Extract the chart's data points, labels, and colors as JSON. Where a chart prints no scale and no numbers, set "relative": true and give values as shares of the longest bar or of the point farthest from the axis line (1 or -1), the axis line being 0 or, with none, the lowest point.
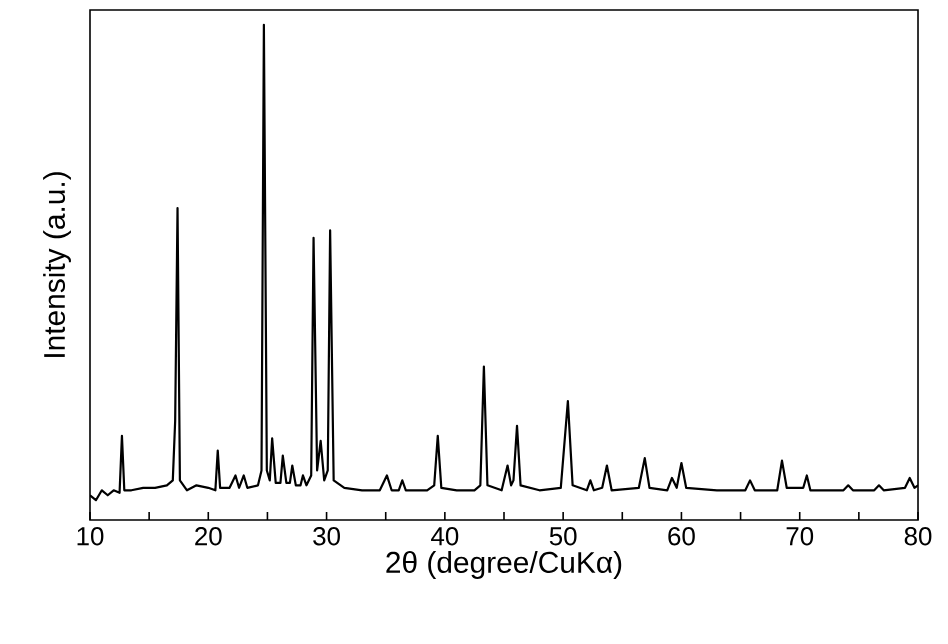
{
  "chart_data": {
    "type": "line",
    "relative": true,
    "xlabel": "2θ (degree/CuKα)",
    "ylabel": "Intensity (a.u.)",
    "tick_labels": "x",
    "xlim": [
      10,
      80
    ],
    "xticks": [
      10,
      {
        "value": 15,
        "label": null
      },
      20,
      {
        "value": 25,
        "label": null
      },
      30,
      {
        "value": 35,
        "label": null
      },
      40,
      {
        "value": 45,
        "label": null
      },
      50,
      {
        "value": 55,
        "label": null
      },
      60,
      {
        "value": 65,
        "label": null
      },
      70,
      {
        "value": 75,
        "label": null
      },
      80
    ],
    "x": [
      10.0,
      10.5,
      11.0,
      11.5,
      12.0,
      12.5,
      12.7,
      12.9,
      13.5,
      14.5,
      15.5,
      16.5,
      17.0,
      17.2,
      17.4,
      17.6,
      18.2,
      19.0,
      20.0,
      20.6,
      20.8,
      21.0,
      21.8,
      22.3,
      22.6,
      23.0,
      23.3,
      24.2,
      24.5,
      24.7,
      24.95,
      25.2,
      25.4,
      25.7,
      26.1,
      26.3,
      26.6,
      26.9,
      27.1,
      27.4,
      27.8,
      28.0,
      28.3,
      28.7,
      28.9,
      29.2,
      29.5,
      29.8,
      30.1,
      30.3,
      30.6,
      31.5,
      33.0,
      34.5,
      35.1,
      35.5,
      36.1,
      36.4,
      36.7,
      38.5,
      39.1,
      39.4,
      39.7,
      41.0,
      42.5,
      43.0,
      43.3,
      43.6,
      44.8,
      45.3,
      45.6,
      45.8,
      46.1,
      46.4,
      48.0,
      49.8,
      50.4,
      50.8,
      52.0,
      52.3,
      52.6,
      53.3,
      53.7,
      54.1,
      56.4,
      56.9,
      57.3,
      58.8,
      59.2,
      59.6,
      60.0,
      60.4,
      63.0,
      65.4,
      65.8,
      66.2,
      68.1,
      68.5,
      68.9,
      70.3,
      70.6,
      70.9,
      73.7,
      74.1,
      74.5,
      76.3,
      76.7,
      77.1,
      78.9,
      79.3,
      79.7,
      80.0
    ],
    "series": [
      {
        "color": "#000000",
        "values": [
          0.05,
          0.04,
          0.06,
          0.05,
          0.06,
          0.055,
          0.17,
          0.06,
          0.06,
          0.065,
          0.065,
          0.07,
          0.08,
          0.2,
          0.63,
          0.08,
          0.06,
          0.07,
          0.065,
          0.06,
          0.14,
          0.065,
          0.065,
          0.09,
          0.065,
          0.09,
          0.065,
          0.07,
          0.1,
          1.0,
          0.1,
          0.08,
          0.165,
          0.075,
          0.075,
          0.13,
          0.075,
          0.075,
          0.11,
          0.07,
          0.07,
          0.09,
          0.07,
          0.09,
          0.57,
          0.1,
          0.16,
          0.08,
          0.1,
          0.585,
          0.08,
          0.065,
          0.06,
          0.06,
          0.09,
          0.06,
          0.06,
          0.08,
          0.06,
          0.06,
          0.07,
          0.17,
          0.065,
          0.06,
          0.06,
          0.07,
          0.31,
          0.07,
          0.06,
          0.11,
          0.07,
          0.08,
          0.19,
          0.07,
          0.06,
          0.065,
          0.24,
          0.07,
          0.06,
          0.08,
          0.06,
          0.065,
          0.11,
          0.06,
          0.065,
          0.125,
          0.065,
          0.06,
          0.085,
          0.065,
          0.115,
          0.065,
          0.06,
          0.06,
          0.08,
          0.06,
          0.06,
          0.12,
          0.065,
          0.065,
          0.09,
          0.06,
          0.06,
          0.07,
          0.06,
          0.06,
          0.07,
          0.06,
          0.065,
          0.085,
          0.065,
          0.07
        ]
      }
    ]
  }
}
